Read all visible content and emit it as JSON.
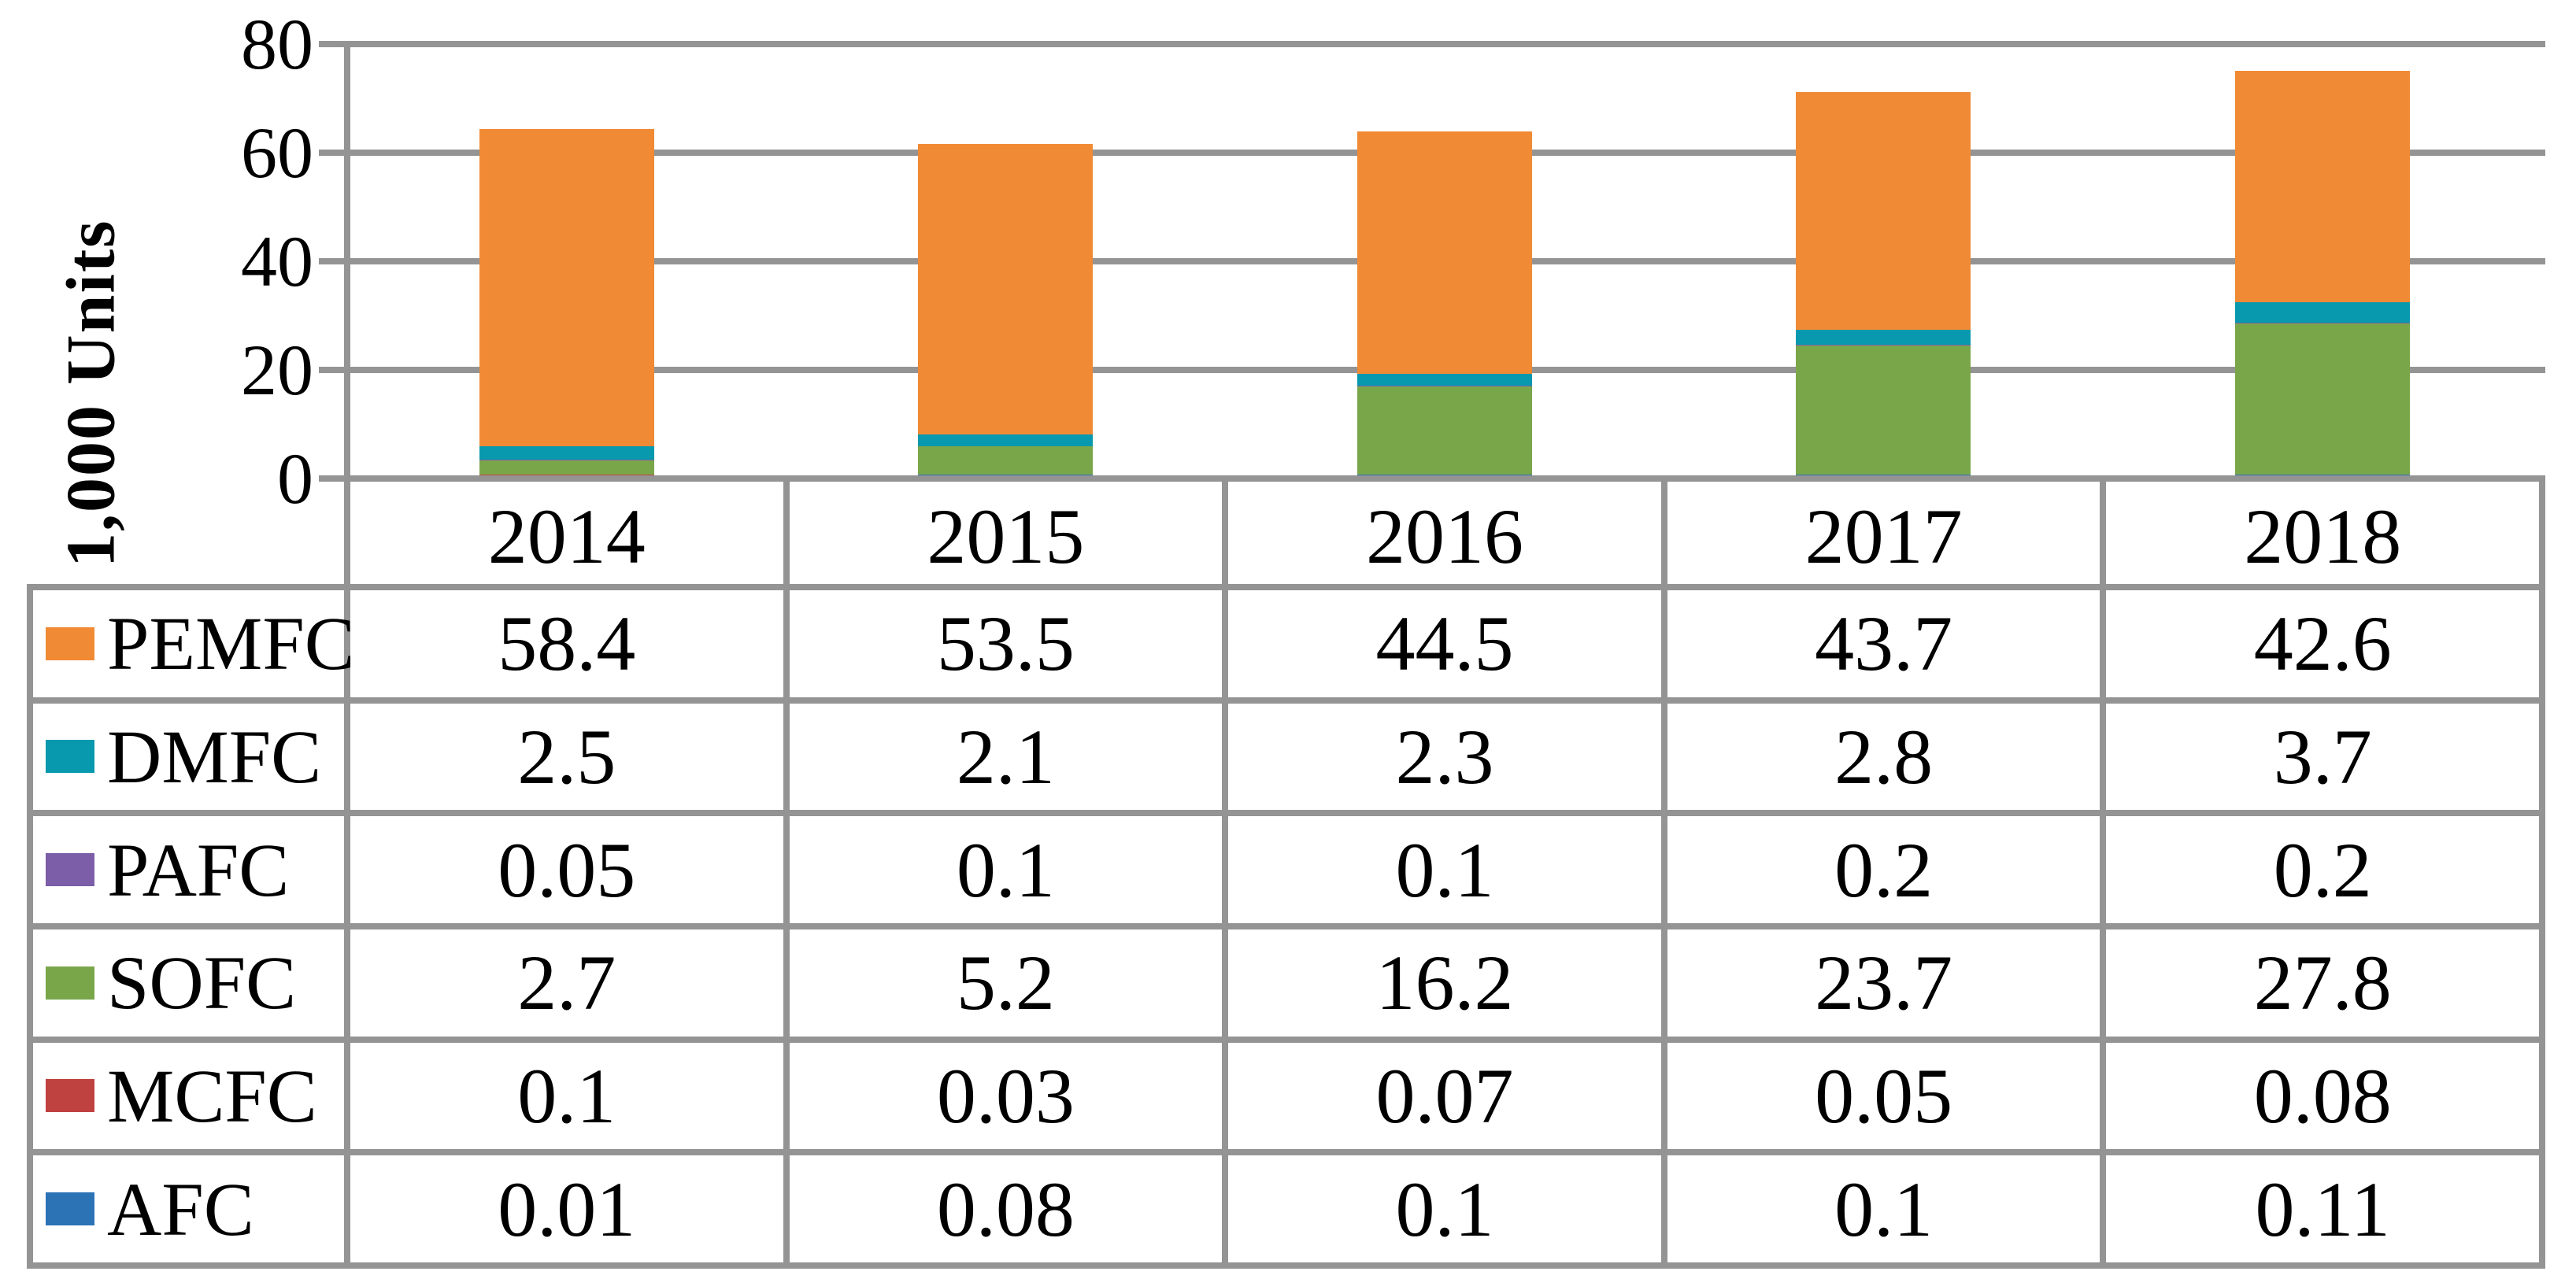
{
  "chart_data": {
    "type": "bar",
    "stacked": true,
    "grid": true,
    "ylabel": "1,000 Units",
    "ylim": [
      0,
      80
    ],
    "yticks": [
      0,
      20,
      40,
      60,
      80
    ],
    "categories": [
      "2014",
      "2015",
      "2016",
      "2017",
      "2018"
    ],
    "series": [
      {
        "name": "PEMFC",
        "color": "#F18A34",
        "values": [
          58.4,
          53.5,
          44.5,
          43.7,
          42.6
        ]
      },
      {
        "name": "DMFC",
        "color": "#0899AE",
        "values": [
          2.5,
          2.1,
          2.3,
          2.8,
          3.7
        ]
      },
      {
        "name": "PAFC",
        "color": "#7B5EA7",
        "values": [
          0.05,
          0.1,
          0.1,
          0.2,
          0.2
        ]
      },
      {
        "name": "SOFC",
        "color": "#7AA64A",
        "values": [
          2.7,
          5.2,
          16.2,
          23.7,
          27.8
        ]
      },
      {
        "name": "MCFC",
        "color": "#C04240",
        "values": [
          0.1,
          0.03,
          0.07,
          0.05,
          0.08
        ]
      },
      {
        "name": "AFC",
        "color": "#2C73B6",
        "values": [
          0.01,
          0.08,
          0.1,
          0.1,
          0.11
        ]
      }
    ],
    "stack_order_bottom_to_top": [
      "AFC",
      "MCFC",
      "SOFC",
      "PAFC",
      "DMFC",
      "PEMFC"
    ],
    "legend_position": "table-left",
    "colors": {
      "grid_and_border": "#949494",
      "text": "#000000",
      "background": "#FFFFFF"
    }
  }
}
